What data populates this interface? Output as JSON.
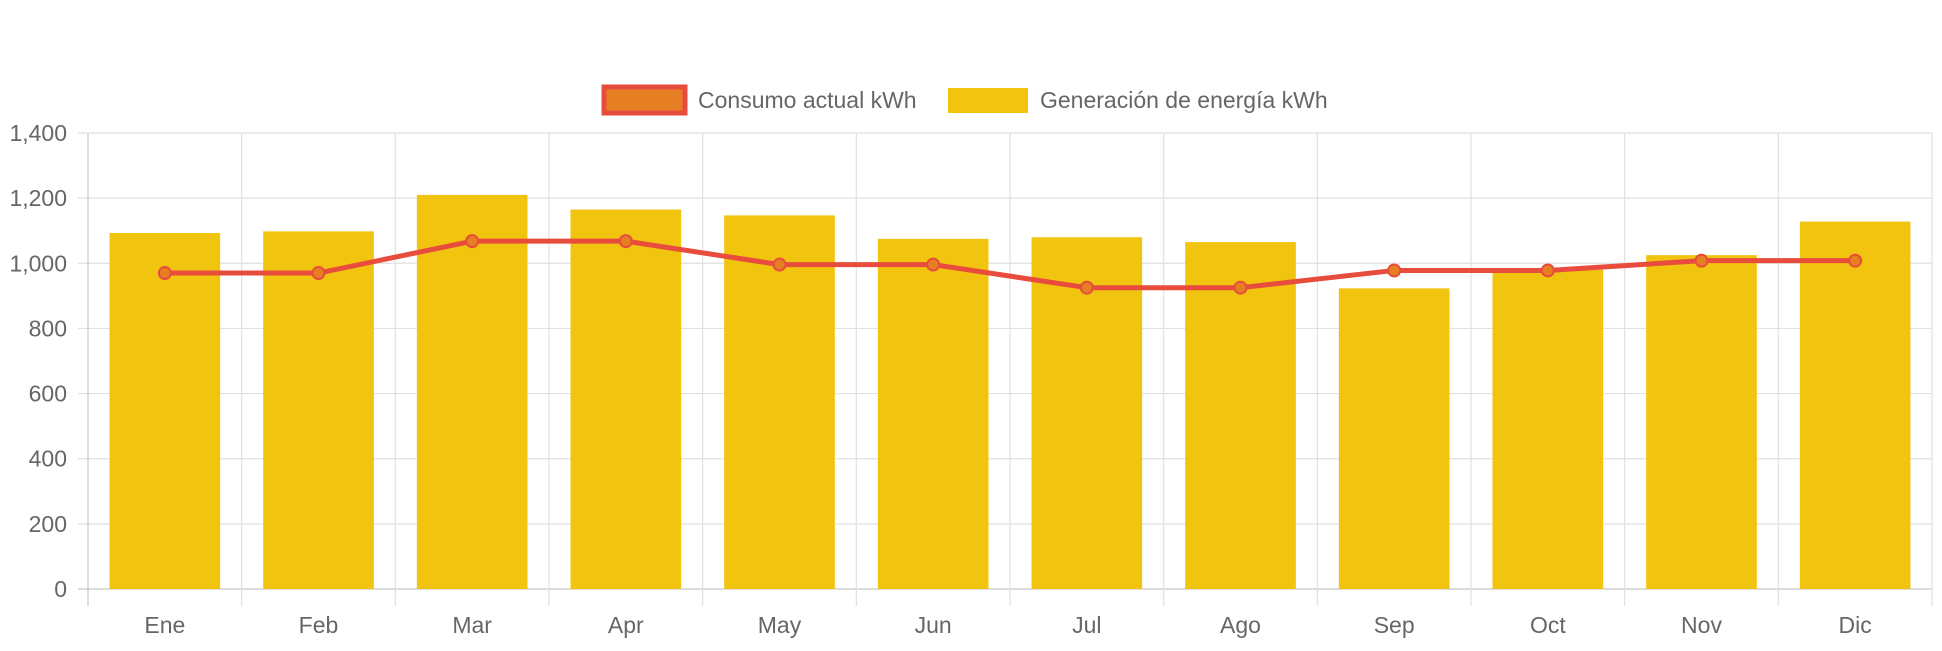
{
  "chart_data": {
    "type": "bar",
    "categories": [
      "Ene",
      "Feb",
      "Mar",
      "Apr",
      "May",
      "Jun",
      "Jul",
      "Ago",
      "Sep",
      "Oct",
      "Nov",
      "Dic"
    ],
    "series": [
      {
        "name": "Consumo actual kWh",
        "kind": "line",
        "color": "#e84c3d",
        "fill": "#e67e22",
        "values": [
          970,
          970,
          1068,
          1068,
          996,
          996,
          925,
          925,
          978,
          978,
          1008,
          1008
        ]
      },
      {
        "name": "Generación de energía kWh",
        "kind": "bar",
        "color": "#f1c40f",
        "values": [
          1093,
          1098,
          1210,
          1165,
          1147,
          1075,
          1080,
          1065,
          923,
          980,
          1025,
          1128
        ]
      }
    ],
    "ylim": [
      0,
      1400
    ],
    "yticks": [
      "0",
      "200",
      "400",
      "600",
      "800",
      "1,000",
      "1,200",
      "1,400"
    ],
    "grid": true,
    "legend_position": "top"
  }
}
